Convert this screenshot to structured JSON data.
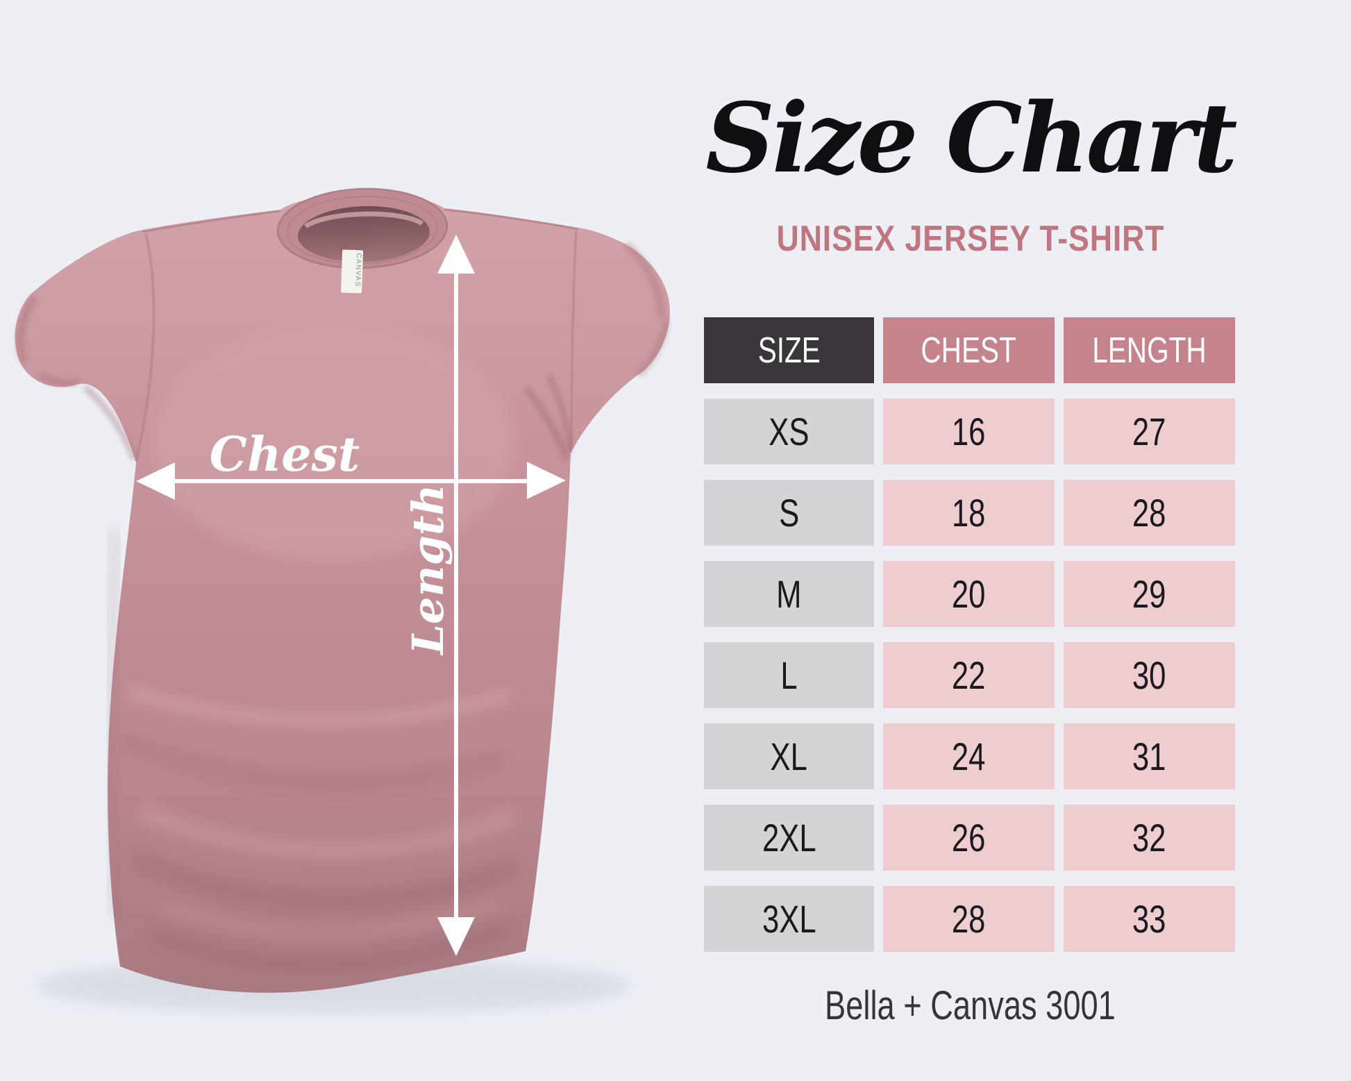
{
  "title": "Size Chart",
  "subtitle": "UNISEX JERSEY T-SHIRT",
  "footer": "Bella + Canvas 3001",
  "shirt": {
    "chest_label": "Chest",
    "length_label": "Length",
    "tag_text": "CANVAS",
    "fabric_color": "#c6929a"
  },
  "colors": {
    "background": "#edeff5",
    "title_black": "#0f0e10",
    "subtitle_rose": "#c0767e",
    "header_dark": "#3a363b",
    "header_rose": "#c5838b",
    "cell_gray": "#d5d3d6",
    "cell_pink": "#edcdcf",
    "arrow_white": "#ffffff"
  },
  "chart_data": {
    "type": "table",
    "title": "Size Chart",
    "subtitle": "UNISEX JERSEY T-SHIRT",
    "columns": [
      "SIZE",
      "CHEST",
      "LENGTH"
    ],
    "rows": [
      [
        "XS",
        16,
        27
      ],
      [
        "S",
        18,
        28
      ],
      [
        "M",
        20,
        29
      ],
      [
        "L",
        22,
        30
      ],
      [
        "XL",
        24,
        31
      ],
      [
        "2XL",
        26,
        32
      ],
      [
        "3XL",
        28,
        33
      ]
    ],
    "footnote": "Bella + Canvas 3001"
  }
}
